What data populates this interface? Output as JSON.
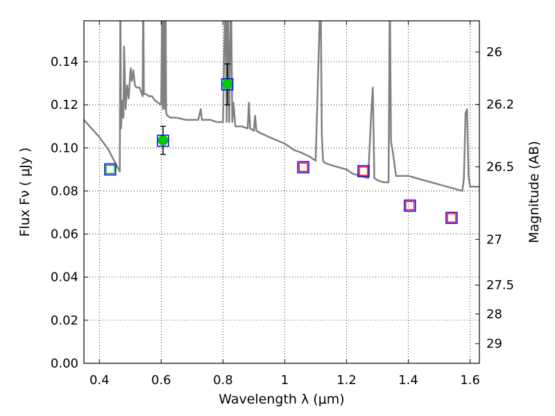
{
  "chart_data": {
    "type": "scatter",
    "xlabel": "Wavelength  λ (μm)",
    "ylabel_left": "Flux  Fν  ( μJy )",
    "ylabel_right": "Magnitude (AB)",
    "xlim": [
      0.35,
      1.63
    ],
    "ylim": [
      0.0,
      0.159
    ],
    "grid": true,
    "x_ticks": [
      0.4,
      0.6,
      0.8,
      1.0,
      1.2,
      1.4,
      1.6
    ],
    "x_tick_labels": [
      "0.4",
      "0.6",
      "0.8",
      "1",
      "1.2",
      "1.4",
      "1.6"
    ],
    "y_ticks": [
      0.0,
      0.02,
      0.04,
      0.06,
      0.08,
      0.1,
      0.12,
      0.14
    ],
    "y_tick_labels": [
      "0.00",
      "0.02",
      "0.04",
      "0.06",
      "0.08",
      "0.10",
      "0.12",
      "0.14"
    ],
    "mag_ticks": [
      {
        "label": "26",
        "flux": 0.1445
      },
      {
        "label": "26.2",
        "flux": 0.1202
      },
      {
        "label": "26.5",
        "flux": 0.0912
      },
      {
        "label": "27",
        "flux": 0.0575
      },
      {
        "label": "27.5",
        "flux": 0.0363
      },
      {
        "label": "28",
        "flux": 0.0229
      },
      {
        "label": "29",
        "flux": 0.0091
      }
    ],
    "series": [
      {
        "name": "model-spectrum",
        "kind": "line",
        "color": "#808080",
        "x": [
          0.35,
          0.4,
          0.43,
          0.455,
          0.462,
          0.466,
          0.468,
          0.47,
          0.475,
          0.478,
          0.48,
          0.485,
          0.49,
          0.495,
          0.5,
          0.502,
          0.505,
          0.51,
          0.515,
          0.52,
          0.53,
          0.54,
          0.542,
          0.544,
          0.55,
          0.56,
          0.57,
          0.58,
          0.59,
          0.6,
          0.604,
          0.606,
          0.608,
          0.612,
          0.614,
          0.616,
          0.62,
          0.63,
          0.65,
          0.68,
          0.7,
          0.72,
          0.728,
          0.732,
          0.74,
          0.76,
          0.78,
          0.8,
          0.808,
          0.812,
          0.816,
          0.82,
          0.826,
          0.83,
          0.834,
          0.84,
          0.86,
          0.88,
          0.884,
          0.888,
          0.9,
          0.904,
          0.908,
          0.92,
          0.95,
          1.0,
          1.02,
          1.03,
          1.05,
          1.08,
          1.1,
          1.116,
          1.12,
          1.124,
          1.13,
          1.15,
          1.2,
          1.22,
          1.27,
          1.28,
          1.285,
          1.29,
          1.3,
          1.32,
          1.336,
          1.34,
          1.344,
          1.35,
          1.36,
          1.4,
          1.45,
          1.5,
          1.55,
          1.575,
          1.58,
          1.585,
          1.59,
          1.595,
          1.6,
          1.63
        ],
        "y": [
          0.113,
          0.105,
          0.099,
          0.092,
          0.09,
          0.089,
          0.175,
          0.109,
          0.122,
          0.114,
          0.147,
          0.118,
          0.129,
          0.123,
          0.135,
          0.137,
          0.131,
          0.136,
          0.129,
          0.128,
          0.128,
          0.124,
          0.175,
          0.125,
          0.125,
          0.124,
          0.124,
          0.122,
          0.121,
          0.12,
          0.175,
          0.118,
          0.175,
          0.118,
          0.175,
          0.116,
          0.115,
          0.114,
          0.114,
          0.113,
          0.113,
          0.113,
          0.118,
          0.113,
          0.113,
          0.113,
          0.112,
          0.112,
          0.175,
          0.112,
          0.175,
          0.112,
          0.175,
          0.112,
          0.121,
          0.11,
          0.11,
          0.109,
          0.121,
          0.109,
          0.108,
          0.115,
          0.108,
          0.107,
          0.105,
          0.102,
          0.1,
          0.099,
          0.098,
          0.096,
          0.094,
          0.175,
          0.106,
          0.094,
          0.093,
          0.092,
          0.09,
          0.088,
          0.086,
          0.116,
          0.128,
          0.086,
          0.085,
          0.084,
          0.084,
          0.175,
          0.103,
          0.098,
          0.087,
          0.087,
          0.085,
          0.083,
          0.081,
          0.08,
          0.086,
          0.116,
          0.118,
          0.087,
          0.082,
          0.082
        ]
      },
      {
        "name": "observed-photometry",
        "kind": "points-errorbars",
        "color": "#00cc00",
        "x": [
          0.606,
          0.814
        ],
        "y": [
          0.1035,
          0.1295
        ],
        "yerr": [
          0.0065,
          0.0095
        ]
      },
      {
        "name": "model-band-flux",
        "kind": "open-squares",
        "color": "#0000ff",
        "x": [
          0.435,
          0.606,
          0.814,
          1.06,
          1.255,
          1.405,
          1.54
        ],
        "y": [
          0.09,
          0.1033,
          0.1295,
          0.091,
          0.0892,
          0.0732,
          0.0675
        ]
      },
      {
        "name": "green-inner-squares",
        "kind": "open-squares",
        "color": "#00aa00",
        "x": [
          0.435
        ],
        "y": [
          0.09
        ]
      },
      {
        "name": "red-inner-squares",
        "kind": "open-squares",
        "color": "#ff0000",
        "x": [
          1.06,
          1.255,
          1.405,
          1.54
        ],
        "y": [
          0.091,
          0.0892,
          0.0732,
          0.0675
        ]
      }
    ]
  }
}
